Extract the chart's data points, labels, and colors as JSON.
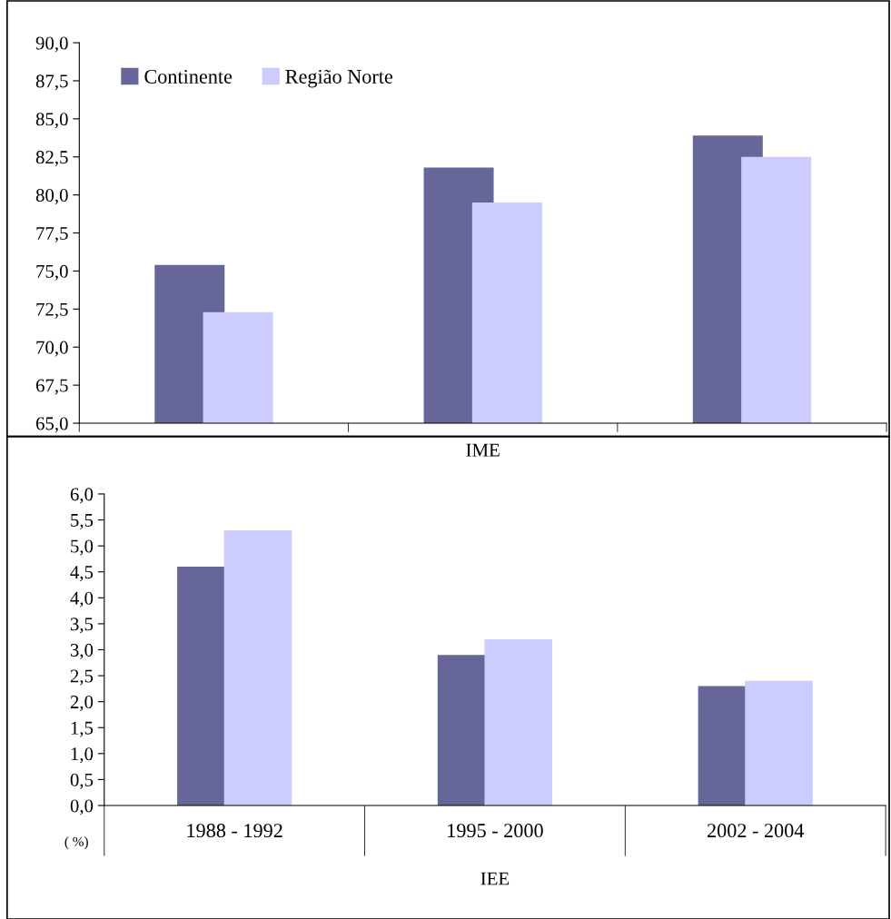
{
  "chart_data": [
    {
      "type": "bar",
      "xlabel": "IME",
      "categories": [
        null,
        null,
        null
      ],
      "tick_labels": "y",
      "legend": "top left",
      "series": [
        {
          "name": "Continente",
          "color": "#666699",
          "values": [
            75.4,
            81.8,
            83.9
          ]
        },
        {
          "name": "Região Norte",
          "color": "#ccccff",
          "values": [
            72.3,
            79.5,
            82.5
          ]
        }
      ],
      "ylim": [
        65,
        90
      ],
      "yticks": [
        {
          "value": 65,
          "label": "65,0"
        },
        {
          "value": 67.5,
          "label": "67,5"
        },
        {
          "value": 70,
          "label": "70,0"
        },
        {
          "value": 72.5,
          "label": "72,5"
        },
        {
          "value": 75,
          "label": "75,0"
        },
        {
          "value": 77.5,
          "label": "77,5"
        },
        {
          "value": 80,
          "label": "80,0"
        },
        {
          "value": 82.5,
          "label": "82,5"
        },
        {
          "value": 85,
          "label": "85,0"
        },
        {
          "value": 87.5,
          "label": "87,5"
        },
        {
          "value": 90,
          "label": "90,0"
        }
      ]
    },
    {
      "type": "bar",
      "xlabel": "IEE",
      "categories": [
        "1988 - 1992",
        "1995 - 2000",
        "2002 - 2004"
      ],
      "annotations": [
        "( %)"
      ],
      "series": [
        {
          "color": "#666699",
          "values": [
            4.6,
            2.9,
            2.3
          ]
        },
        {
          "color": "#ccccff",
          "values": [
            5.3,
            3.2,
            2.4
          ]
        }
      ],
      "ylim": [
        0,
        6
      ],
      "yticks": [
        {
          "value": 0,
          "label": "0,0"
        },
        {
          "value": 0.5,
          "label": "0,5"
        },
        {
          "value": 1,
          "label": "1,0"
        },
        {
          "value": 1.5,
          "label": "1,5"
        },
        {
          "value": 2,
          "label": "2,0"
        },
        {
          "value": 2.5,
          "label": "2,5"
        },
        {
          "value": 3,
          "label": "3,0"
        },
        {
          "value": 3.5,
          "label": "3,5"
        },
        {
          "value": 4,
          "label": "4,0"
        },
        {
          "value": 4.5,
          "label": "4,5"
        },
        {
          "value": 5,
          "label": "5,0"
        },
        {
          "value": 5.5,
          "label": "5,5"
        },
        {
          "value": 6,
          "label": "6,0"
        }
      ]
    }
  ]
}
